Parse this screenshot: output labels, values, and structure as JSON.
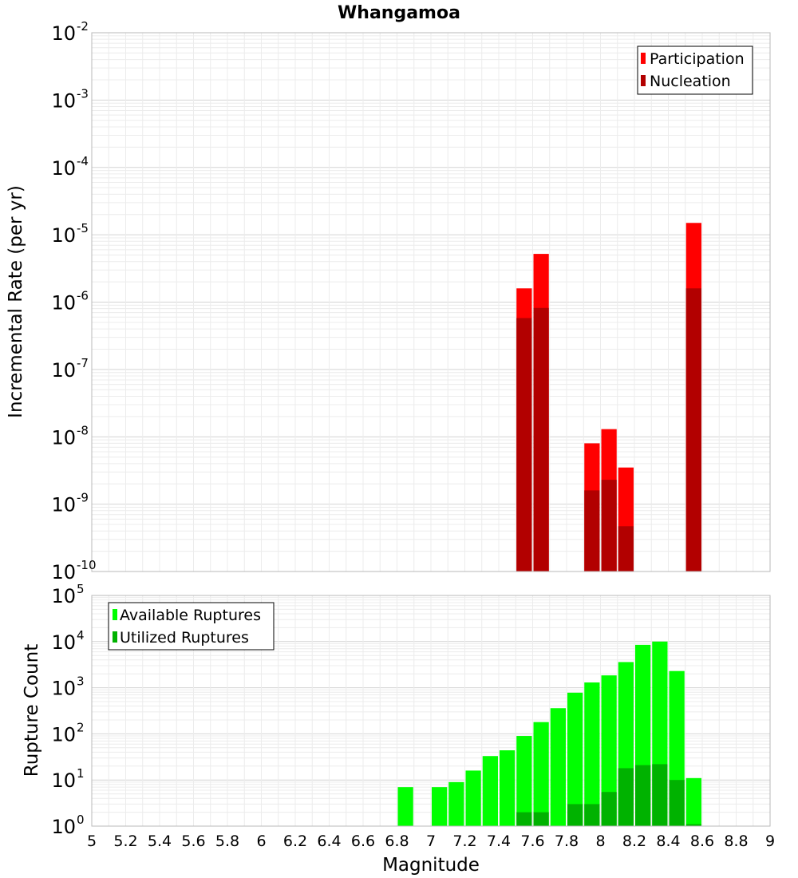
{
  "chart_data": [
    {
      "type": "bar",
      "title": "Whangamoa",
      "xlabel": "",
      "ylabel": "Incremental Rate (per yr)",
      "yscale": "log",
      "ylim_exp": [
        -10,
        -2
      ],
      "ytick_labels": [
        {
          "base": "10",
          "exp": "-10"
        },
        {
          "base": "10",
          "exp": "-9"
        },
        {
          "base": "10",
          "exp": "-8"
        },
        {
          "base": "10",
          "exp": "-7"
        },
        {
          "base": "10",
          "exp": "-6"
        },
        {
          "base": "10",
          "exp": "-5"
        },
        {
          "base": "10",
          "exp": "-4"
        },
        {
          "base": "10",
          "exp": "-3"
        },
        {
          "base": "10",
          "exp": "-2"
        }
      ],
      "xlim": [
        5,
        9
      ],
      "bin_width": 0.1,
      "grid": true,
      "legend_position": "top-right",
      "series": [
        {
          "name": "Participation",
          "color": "#ff0000",
          "points": [
            {
              "x": 7.55,
              "y": 1.6e-06
            },
            {
              "x": 7.65,
              "y": 5.2e-06
            },
            {
              "x": 7.95,
              "y": 8e-09
            },
            {
              "x": 8.05,
              "y": 1.3e-08
            },
            {
              "x": 8.15,
              "y": 3.5e-09
            },
            {
              "x": 8.55,
              "y": 1.5e-05
            }
          ]
        },
        {
          "name": "Nucleation",
          "color": "#b20000",
          "points": [
            {
              "x": 7.55,
              "y": 5.8e-07
            },
            {
              "x": 7.65,
              "y": 8.2e-07
            },
            {
              "x": 7.95,
              "y": 1.6e-09
            },
            {
              "x": 8.05,
              "y": 2.3e-09
            },
            {
              "x": 8.15,
              "y": 4.7e-10
            },
            {
              "x": 8.55,
              "y": 1.6e-06
            }
          ]
        }
      ]
    },
    {
      "type": "bar",
      "title": "",
      "xlabel": "Magnitude",
      "ylabel": "Rupture Count",
      "yscale": "log",
      "ylim_exp": [
        0,
        5
      ],
      "ytick_labels": [
        {
          "base": "10",
          "exp": "0"
        },
        {
          "base": "10",
          "exp": "1"
        },
        {
          "base": "10",
          "exp": "2"
        },
        {
          "base": "10",
          "exp": "3"
        },
        {
          "base": "10",
          "exp": "4"
        },
        {
          "base": "10",
          "exp": "5"
        }
      ],
      "xlim": [
        5,
        9
      ],
      "xtick_labels": [
        "5",
        "5.2",
        "5.4",
        "5.6",
        "5.8",
        "6",
        "6.2",
        "6.4",
        "6.6",
        "6.8",
        "7",
        "7.2",
        "7.4",
        "7.6",
        "7.8",
        "8",
        "8.2",
        "8.4",
        "8.6",
        "8.8",
        "9"
      ],
      "bin_width": 0.1,
      "grid": true,
      "legend_position": "top-left",
      "series": [
        {
          "name": "Available Ruptures",
          "color": "#00ff00",
          "points": [
            {
              "x": 6.85,
              "y": 7
            },
            {
              "x": 7.05,
              "y": 7
            },
            {
              "x": 7.15,
              "y": 9
            },
            {
              "x": 7.25,
              "y": 16
            },
            {
              "x": 7.35,
              "y": 33
            },
            {
              "x": 7.45,
              "y": 44
            },
            {
              "x": 7.55,
              "y": 90
            },
            {
              "x": 7.65,
              "y": 180
            },
            {
              "x": 7.75,
              "y": 360
            },
            {
              "x": 7.85,
              "y": 780
            },
            {
              "x": 7.95,
              "y": 1300
            },
            {
              "x": 8.05,
              "y": 1850
            },
            {
              "x": 8.15,
              "y": 3600
            },
            {
              "x": 8.25,
              "y": 8500
            },
            {
              "x": 8.35,
              "y": 10000
            },
            {
              "x": 8.45,
              "y": 2300
            },
            {
              "x": 8.55,
              "y": 11
            }
          ]
        },
        {
          "name": "Utilized Ruptures",
          "color": "#00b200",
          "points": [
            {
              "x": 7.55,
              "y": 2
            },
            {
              "x": 7.65,
              "y": 2
            },
            {
              "x": 7.85,
              "y": 3
            },
            {
              "x": 7.95,
              "y": 3
            },
            {
              "x": 8.05,
              "y": 5.5
            },
            {
              "x": 8.15,
              "y": 18
            },
            {
              "x": 8.25,
              "y": 21
            },
            {
              "x": 8.35,
              "y": 22
            },
            {
              "x": 8.45,
              "y": 10
            },
            {
              "x": 8.55,
              "y": 1.1
            }
          ]
        }
      ]
    }
  ]
}
